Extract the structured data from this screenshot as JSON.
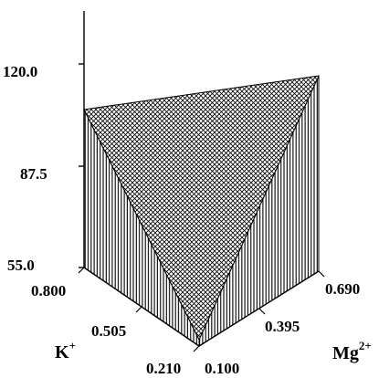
{
  "colors": {
    "ink": "#000000",
    "background": "#ffffff"
  },
  "chart_data": {
    "type": "surface3d",
    "title": "",
    "grid": false,
    "z_axis": {
      "ticks": [
        "55.0",
        "87.5",
        "120.0"
      ],
      "range": [
        55.0,
        120.0
      ]
    },
    "k_axis": {
      "label_main": "K",
      "label_sup": "+",
      "ticks": [
        "0.800",
        "0.505",
        "0.210"
      ],
      "range": [
        0.21,
        0.8
      ]
    },
    "mg_axis": {
      "label_main": "Mg",
      "label_sup": "2+",
      "ticks": [
        "0.100",
        "0.395",
        "0.690"
      ],
      "range": [
        0.1,
        0.69
      ]
    },
    "surface_points": [
      {
        "k": 0.8,
        "mg": 0.1,
        "z": 106
      },
      {
        "k": 0.21,
        "mg": 0.69,
        "z": 117
      },
      {
        "k": 0.21,
        "mg": 0.1,
        "z": 55
      }
    ]
  }
}
